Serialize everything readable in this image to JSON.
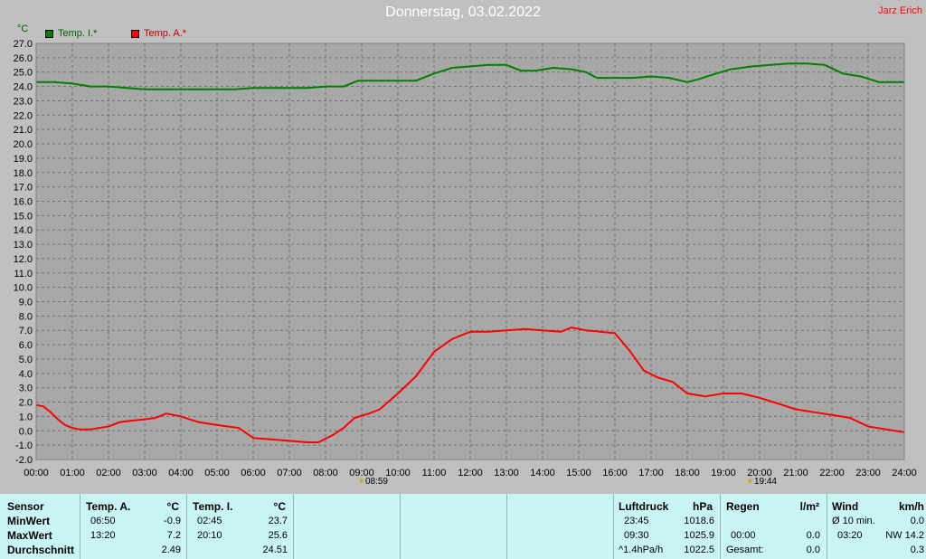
{
  "header": {
    "title": "Donnerstag, 03.02.2022",
    "author": "Jarz Erich",
    "unit": "°C",
    "legend": [
      {
        "name": "Temp. I.*",
        "color": "#008000"
      },
      {
        "name": "Temp. A.*",
        "color": "#ff0000"
      }
    ]
  },
  "sun": {
    "rise": "08:59",
    "set": "19:44",
    "icon": "sun-icon"
  },
  "chart_data": {
    "type": "line",
    "x_unit": "time of day (hours)",
    "xlim": [
      0,
      24
    ],
    "ylim": [
      -2.0,
      27.0
    ],
    "y_ticks": [
      "27.0",
      "26.0",
      "25.0",
      "24.0",
      "23.0",
      "22.0",
      "21.0",
      "20.0",
      "19.0",
      "18.0",
      "17.0",
      "16.0",
      "15.0",
      "14.0",
      "13.0",
      "12.0",
      "11.0",
      "10.0",
      "9.0",
      "8.0",
      "7.0",
      "6.0",
      "5.0",
      "4.0",
      "3.0",
      "2.0",
      "1.0",
      "0.0",
      "-1.0",
      "-2.0"
    ],
    "x_ticks": [
      "00:00",
      "01:00",
      "02:00",
      "03:00",
      "04:00",
      "05:00",
      "06:00",
      "07:00",
      "08:00",
      "09:00",
      "10:00",
      "11:00",
      "12:00",
      "13:00",
      "14:00",
      "15:00",
      "16:00",
      "17:00",
      "18:00",
      "19:00",
      "20:00",
      "21:00",
      "22:00",
      "23:00",
      "24:00"
    ],
    "grid": true,
    "legend": "top-left",
    "series": [
      {
        "name": "Temp. I.*",
        "color": "#008000",
        "x": [
          0,
          0.5,
          1,
          1.5,
          2,
          2.5,
          3,
          3.5,
          4,
          4.5,
          5,
          5.5,
          6,
          6.5,
          7,
          7.5,
          8,
          8.5,
          8.9,
          9.5,
          10,
          10.5,
          11,
          11.5,
          12,
          12.5,
          13,
          13.4,
          13.8,
          14.3,
          14.8,
          15.2,
          15.5,
          16,
          16.5,
          17,
          17.5,
          18,
          18.3,
          18.8,
          19.2,
          19.8,
          20.3,
          20.8,
          21.3,
          21.8,
          22.3,
          22.8,
          23.3,
          24
        ],
        "y": [
          24.3,
          24.3,
          24.2,
          24.0,
          24.0,
          23.9,
          23.8,
          23.8,
          23.8,
          23.8,
          23.8,
          23.8,
          23.9,
          23.9,
          23.9,
          23.9,
          24.0,
          24.0,
          24.4,
          24.4,
          24.4,
          24.4,
          24.9,
          25.3,
          25.4,
          25.5,
          25.5,
          25.1,
          25.1,
          25.3,
          25.2,
          25.0,
          24.6,
          24.6,
          24.6,
          24.7,
          24.6,
          24.3,
          24.5,
          24.9,
          25.2,
          25.4,
          25.5,
          25.6,
          25.6,
          25.5,
          24.9,
          24.7,
          24.3,
          24.3
        ]
      },
      {
        "name": "Temp. A.*",
        "color": "#ff0000",
        "x": [
          0,
          0.2,
          0.4,
          0.6,
          0.8,
          1.0,
          1.2,
          1.5,
          2.0,
          2.3,
          2.6,
          3.0,
          3.3,
          3.6,
          4.0,
          4.5,
          5.0,
          5.3,
          5.6,
          6.0,
          6.5,
          7.0,
          7.5,
          7.8,
          8.2,
          8.5,
          8.8,
          9.2,
          9.5,
          10.0,
          10.5,
          11.0,
          11.5,
          12.0,
          12.5,
          13.0,
          13.5,
          14.0,
          14.5,
          14.8,
          15.2,
          15.6,
          16.0,
          16.4,
          16.8,
          17.2,
          17.6,
          18.0,
          18.5,
          19.0,
          19.5,
          20.0,
          20.5,
          21.0,
          21.5,
          22.0,
          22.5,
          23.0,
          23.5,
          24.0
        ],
        "y": [
          1.8,
          1.7,
          1.3,
          0.8,
          0.4,
          0.2,
          0.1,
          0.1,
          0.3,
          0.6,
          0.7,
          0.8,
          0.9,
          1.2,
          1.0,
          0.6,
          0.4,
          0.3,
          0.2,
          -0.5,
          -0.6,
          -0.7,
          -0.8,
          -0.8,
          -0.3,
          0.2,
          0.9,
          1.2,
          1.5,
          2.6,
          3.8,
          5.5,
          6.4,
          6.9,
          6.9,
          7.0,
          7.1,
          7.0,
          6.9,
          7.2,
          7.0,
          6.9,
          6.8,
          5.6,
          4.2,
          3.7,
          3.4,
          2.6,
          2.4,
          2.6,
          2.6,
          2.3,
          1.9,
          1.5,
          1.3,
          1.1,
          0.9,
          0.3,
          0.1,
          -0.1
        ]
      }
    ]
  },
  "table": {
    "columns": [
      {
        "label": "Sensor",
        "rows": [
          "MinWert",
          "MaxWert",
          "Durchschnitt"
        ]
      },
      {
        "label": "Temp. A.",
        "unit": "°C",
        "times": [
          "06:50",
          "13:20",
          ""
        ],
        "values": [
          "-0.9",
          "7.2",
          "2.49"
        ]
      },
      {
        "label": "Temp. I.",
        "unit": "°C",
        "times": [
          "02:45",
          "20:10",
          ""
        ],
        "values": [
          "23.7",
          "25.6",
          "24.51"
        ]
      },
      {
        "label": "Luftdruck",
        "unit": "hPa",
        "times": [
          "23:45",
          "09:30",
          "^1.4hPa/h"
        ],
        "values": [
          "1018.6",
          "1025.9",
          "1022.5"
        ]
      },
      {
        "label": "Regen",
        "unit": "l/m²",
        "times": [
          "",
          "00:00",
          "Gesamt:"
        ],
        "values": [
          "",
          "0.0",
          "0.0"
        ]
      },
      {
        "label": "Wind",
        "unit": "km/h",
        "times": [
          "Ø 10 min.",
          "03:20",
          ""
        ],
        "values": [
          "0.0",
          "NW 14.2",
          "0.3"
        ]
      }
    ]
  }
}
